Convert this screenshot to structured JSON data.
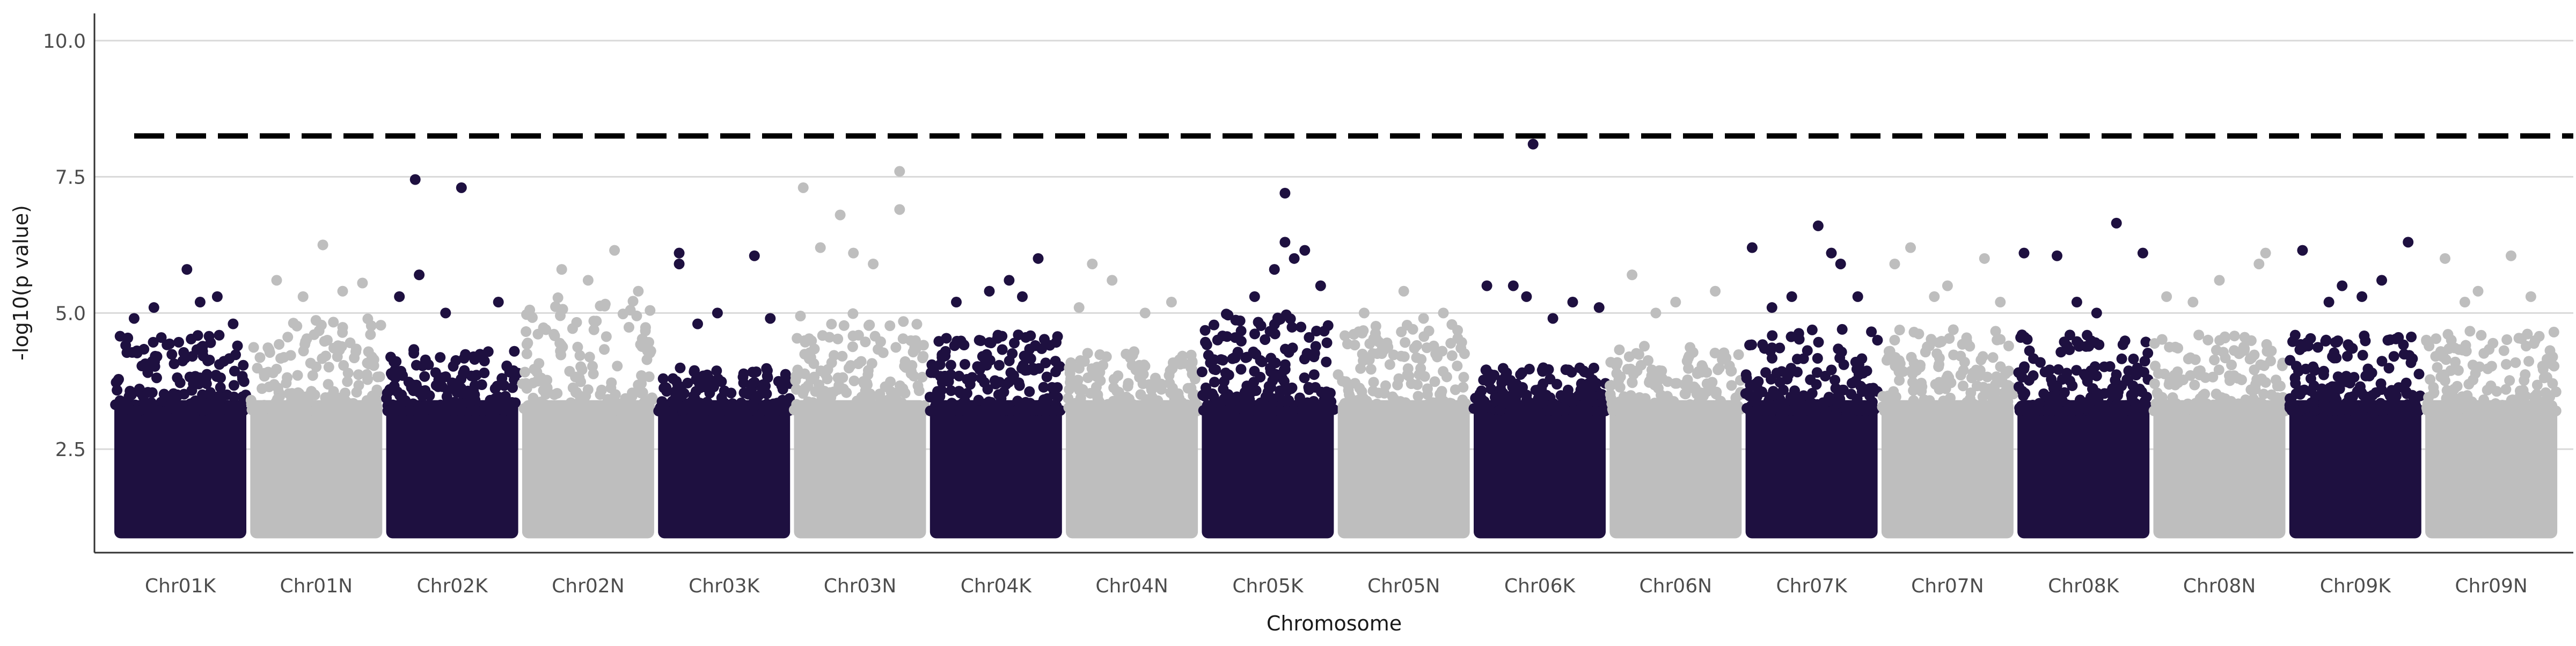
{
  "chart_data": {
    "type": "scatter",
    "subtype": "manhattan",
    "title": "",
    "xlabel": "Chromosome",
    "ylabel": "-log10(p value)",
    "ylim": [
      0.6,
      10.5
    ],
    "yticks": [
      "2.5",
      "5.0",
      "7.5",
      "10.0"
    ],
    "grid": "horizontal major",
    "legend": "none",
    "threshold": 8.25,
    "colors": {
      "odd": "#1e1040",
      "even": "#bebebe",
      "threshold": "#000000",
      "grid": "#d9d9d9",
      "axis": "#333333"
    },
    "categories": [
      "Chr01K",
      "Chr01N",
      "Chr02K",
      "Chr02N",
      "Chr03K",
      "Chr03N",
      "Chr04K",
      "Chr04N",
      "Chr05K",
      "Chr05N",
      "Chr06K",
      "Chr06N",
      "Chr07K",
      "Chr07N",
      "Chr08K",
      "Chr08N",
      "Chr09K",
      "Chr09N"
    ],
    "series": [
      {
        "chromosome": "Chr01K",
        "color": "#1e1040",
        "base_max": 4.6,
        "points": [
          [
            0.55,
            5.8
          ],
          [
            0.3,
            5.1
          ],
          [
            0.78,
            5.3
          ],
          [
            0.65,
            5.2
          ],
          [
            0.15,
            4.9
          ],
          [
            0.9,
            4.8
          ]
        ]
      },
      {
        "chromosome": "Chr01N",
        "color": "#bebebe",
        "base_max": 4.9,
        "points": [
          [
            0.55,
            6.25
          ],
          [
            0.2,
            5.6
          ],
          [
            0.85,
            5.55
          ],
          [
            0.4,
            5.3
          ],
          [
            0.7,
            5.4
          ]
        ]
      },
      {
        "chromosome": "Chr02K",
        "color": "#1e1040",
        "base_max": 4.4,
        "points": [
          [
            0.22,
            7.45
          ],
          [
            0.57,
            7.3
          ],
          [
            0.25,
            5.7
          ],
          [
            0.1,
            5.3
          ],
          [
            0.85,
            5.2
          ],
          [
            0.45,
            5.0
          ]
        ]
      },
      {
        "chromosome": "Chr02N",
        "color": "#bebebe",
        "base_max": 5.3,
        "points": [
          [
            0.7,
            6.15
          ],
          [
            0.3,
            5.8
          ],
          [
            0.5,
            5.6
          ],
          [
            0.88,
            5.4
          ]
        ]
      },
      {
        "chromosome": "Chr03K",
        "color": "#1e1040",
        "base_max": 4.0,
        "points": [
          [
            0.16,
            6.1
          ],
          [
            0.16,
            5.9
          ],
          [
            0.73,
            6.05
          ],
          [
            0.45,
            5.0
          ],
          [
            0.85,
            4.9
          ],
          [
            0.3,
            4.8
          ]
        ]
      },
      {
        "chromosome": "Chr03N",
        "color": "#bebebe",
        "base_max": 5.0,
        "points": [
          [
            0.07,
            7.3
          ],
          [
            0.8,
            7.6
          ],
          [
            0.8,
            6.9
          ],
          [
            0.35,
            6.8
          ],
          [
            0.2,
            6.2
          ],
          [
            0.45,
            6.1
          ],
          [
            0.6,
            5.9
          ]
        ]
      },
      {
        "chromosome": "Chr04K",
        "color": "#1e1040",
        "base_max": 4.6,
        "points": [
          [
            0.82,
            6.0
          ],
          [
            0.6,
            5.6
          ],
          [
            0.45,
            5.4
          ],
          [
            0.2,
            5.2
          ],
          [
            0.7,
            5.3
          ]
        ]
      },
      {
        "chromosome": "Chr04N",
        "color": "#bebebe",
        "base_max": 4.3,
        "points": [
          [
            0.2,
            5.9
          ],
          [
            0.35,
            5.6
          ],
          [
            0.1,
            5.1
          ],
          [
            0.8,
            5.2
          ],
          [
            0.6,
            5.0
          ]
        ]
      },
      {
        "chromosome": "Chr05K",
        "color": "#1e1040",
        "base_max": 5.0,
        "points": [
          [
            0.63,
            7.2
          ],
          [
            0.63,
            6.3
          ],
          [
            0.78,
            6.15
          ],
          [
            0.7,
            6.0
          ],
          [
            0.55,
            5.8
          ],
          [
            0.9,
            5.5
          ],
          [
            0.4,
            5.3
          ]
        ]
      },
      {
        "chromosome": "Chr05N",
        "color": "#bebebe",
        "base_max": 4.8,
        "points": [
          [
            0.5,
            5.4
          ],
          [
            0.2,
            5.0
          ],
          [
            0.8,
            5.0
          ],
          [
            0.65,
            4.9
          ]
        ]
      },
      {
        "chromosome": "Chr06K",
        "color": "#1e1040",
        "base_max": 4.0,
        "points": [
          [
            0.45,
            8.1
          ],
          [
            0.1,
            5.5
          ],
          [
            0.3,
            5.5
          ],
          [
            0.4,
            5.3
          ],
          [
            0.95,
            5.1
          ],
          [
            0.75,
            5.2
          ],
          [
            0.6,
            4.9
          ]
        ]
      },
      {
        "chromosome": "Chr06N",
        "color": "#bebebe",
        "base_max": 4.4,
        "points": [
          [
            0.17,
            5.7
          ],
          [
            0.5,
            5.2
          ],
          [
            0.8,
            5.4
          ],
          [
            0.35,
            5.0
          ]
        ]
      },
      {
        "chromosome": "Chr07K",
        "color": "#1e1040",
        "base_max": 4.7,
        "points": [
          [
            0.05,
            6.2
          ],
          [
            0.55,
            6.6
          ],
          [
            0.65,
            6.1
          ],
          [
            0.72,
            5.9
          ],
          [
            0.35,
            5.3
          ],
          [
            0.85,
            5.3
          ],
          [
            0.2,
            5.1
          ]
        ]
      },
      {
        "chromosome": "Chr07N",
        "color": "#bebebe",
        "base_max": 4.7,
        "points": [
          [
            0.1,
            5.9
          ],
          [
            0.22,
            6.2
          ],
          [
            0.78,
            6.0
          ],
          [
            0.5,
            5.5
          ],
          [
            0.4,
            5.3
          ],
          [
            0.9,
            5.2
          ]
        ]
      },
      {
        "chromosome": "Chr08K",
        "color": "#1e1040",
        "base_max": 4.6,
        "points": [
          [
            0.05,
            6.1
          ],
          [
            0.3,
            6.05
          ],
          [
            0.75,
            6.65
          ],
          [
            0.95,
            6.1
          ],
          [
            0.45,
            5.2
          ],
          [
            0.6,
            5.0
          ]
        ]
      },
      {
        "chromosome": "Chr08N",
        "color": "#bebebe",
        "base_max": 4.6,
        "points": [
          [
            0.1,
            5.3
          ],
          [
            0.3,
            5.2
          ],
          [
            0.5,
            5.6
          ],
          [
            0.8,
            5.9
          ],
          [
            0.85,
            6.1
          ]
        ]
      },
      {
        "chromosome": "Chr09K",
        "color": "#1e1040",
        "base_max": 4.6,
        "points": [
          [
            0.1,
            6.15
          ],
          [
            0.4,
            5.5
          ],
          [
            0.7,
            5.6
          ],
          [
            0.9,
            6.3
          ],
          [
            0.55,
            5.3
          ],
          [
            0.3,
            5.2
          ]
        ]
      },
      {
        "chromosome": "Chr09N",
        "color": "#bebebe",
        "base_max": 4.7,
        "points": [
          [
            0.15,
            6.0
          ],
          [
            0.65,
            6.05
          ],
          [
            0.4,
            5.4
          ],
          [
            0.8,
            5.3
          ],
          [
            0.3,
            5.2
          ]
        ]
      }
    ]
  }
}
